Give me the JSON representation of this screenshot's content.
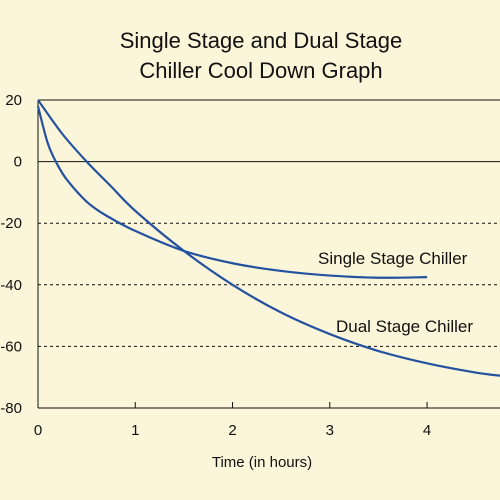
{
  "chart_data": {
    "type": "line",
    "title": "Single Stage and Dual Stage\nChiller Cool Down Graph",
    "xlabel": "Time (in hours)",
    "ylabel": "",
    "xlim": [
      0,
      4.75
    ],
    "ylim": [
      -80,
      20
    ],
    "x_ticks": [
      "0",
      "1",
      "2",
      "3",
      "4"
    ],
    "y_ticks": [
      "20",
      "0",
      "-20",
      "-40",
      "-60",
      "-80"
    ],
    "grid": {
      "y_dashed_at": [
        -20,
        -40,
        -60
      ],
      "y_solid_at": [
        20,
        0,
        -80
      ]
    },
    "colors": {
      "series": "#2451a0",
      "grid": "#111111",
      "background": "#fbf6d9"
    },
    "series": [
      {
        "name": "Single Stage Chiller",
        "x": [
          0,
          0.1,
          0.2,
          0.3,
          0.5,
          0.7,
          1.0,
          1.5,
          2.0,
          2.5,
          3.0,
          3.5,
          4.0
        ],
        "y": [
          18,
          6,
          -1,
          -6,
          -13,
          -17.5,
          -22.5,
          -29,
          -33,
          -35.5,
          -37,
          -37.7,
          -37.5
        ]
      },
      {
        "name": "Dual Stage Chiller",
        "x": [
          0,
          0.25,
          0.5,
          0.75,
          1.0,
          1.5,
          2.0,
          2.5,
          3.0,
          3.5,
          4.0,
          4.5,
          4.75
        ],
        "y": [
          20,
          9,
          0,
          -8,
          -16,
          -29,
          -40,
          -49,
          -56,
          -61.5,
          -65.5,
          -68.5,
          -69.5
        ]
      }
    ]
  }
}
